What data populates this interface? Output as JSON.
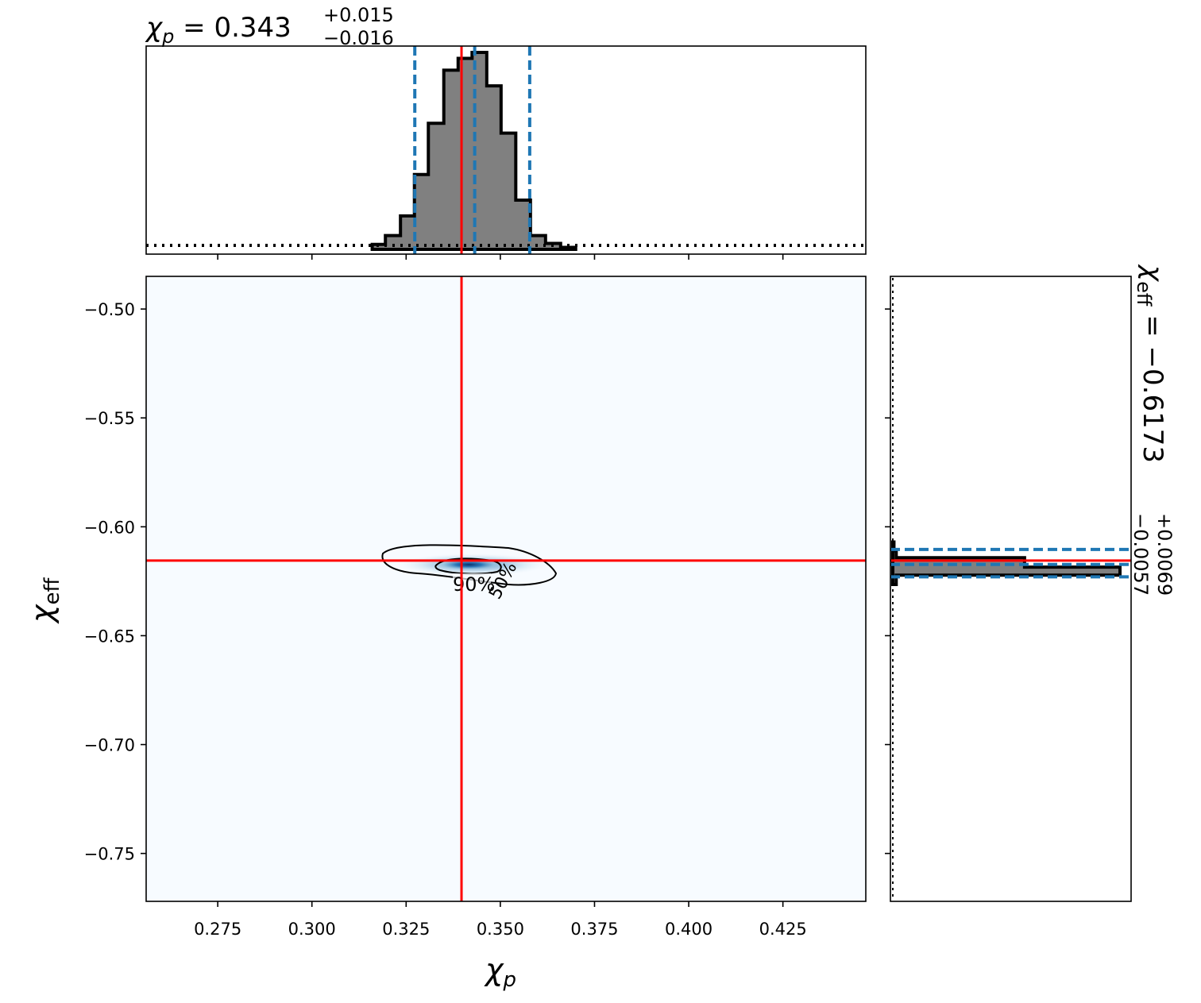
{
  "chart_data": {
    "type": "corner",
    "x_param": {
      "symbol": "χ",
      "subscript": "p",
      "xlim": [
        0.256,
        0.447
      ],
      "ticks": [
        0.275,
        0.3,
        0.325,
        0.35,
        0.375,
        0.4,
        0.425
      ],
      "tick_labels": [
        "0.275",
        "0.300",
        "0.325",
        "0.350",
        "0.375",
        "0.400",
        "0.425"
      ],
      "title_value": "0.343",
      "title_plus": "+0.015",
      "title_minus": "−0.016",
      "truth": 0.3397,
      "median": 0.3432,
      "quantiles": [
        0.3273,
        0.3578
      ]
    },
    "y_param": {
      "symbol": "χ",
      "subscript": "eff",
      "ylim": [
        -0.772,
        -0.485
      ],
      "ticks": [
        -0.5,
        -0.55,
        -0.6,
        -0.65,
        -0.7,
        -0.75
      ],
      "tick_labels": [
        "−0.50",
        "−0.55",
        "−0.60",
        "−0.65",
        "−0.70",
        "−0.75"
      ],
      "title_value": "−0.6173",
      "title_plus": "+0.0069",
      "title_minus": "−0.0057",
      "truth": -0.6155,
      "median": -0.6173,
      "quantiles": [
        -0.623,
        -0.6104
      ]
    },
    "hist_x": {
      "bin_edges": [
        0.316,
        0.3195,
        0.3235,
        0.3272,
        0.3309,
        0.335,
        0.3388,
        0.3425,
        0.3464,
        0.3502,
        0.3541,
        0.358,
        0.362,
        0.366,
        0.37
      ],
      "counts": [
        2.5,
        7,
        17,
        38,
        64,
        91,
        97,
        100,
        83,
        59,
        25,
        7,
        3,
        1
      ]
    },
    "hist_x_prior_level": 2,
    "hist_y": {
      "bin_edges": [
        -0.6265,
        -0.6222,
        -0.6185,
        -0.6142,
        -0.611,
        -0.607
      ],
      "counts": [
        1.5,
        100,
        58,
        1.5,
        0.5
      ]
    },
    "contours": [
      {
        "label": "90%",
        "center": [
          0.3395,
          -0.617
        ]
      },
      {
        "label": "50%",
        "center": [
          0.3375,
          -0.617
        ]
      }
    ],
    "contour_labels": [
      "90%",
      "50%"
    ],
    "colors": {
      "truth": "#ff0000",
      "quantile": "#1f77b4",
      "hist_fill": "#808080",
      "density_bg": "#f7fbff",
      "density_peak": "#08306b"
    }
  }
}
